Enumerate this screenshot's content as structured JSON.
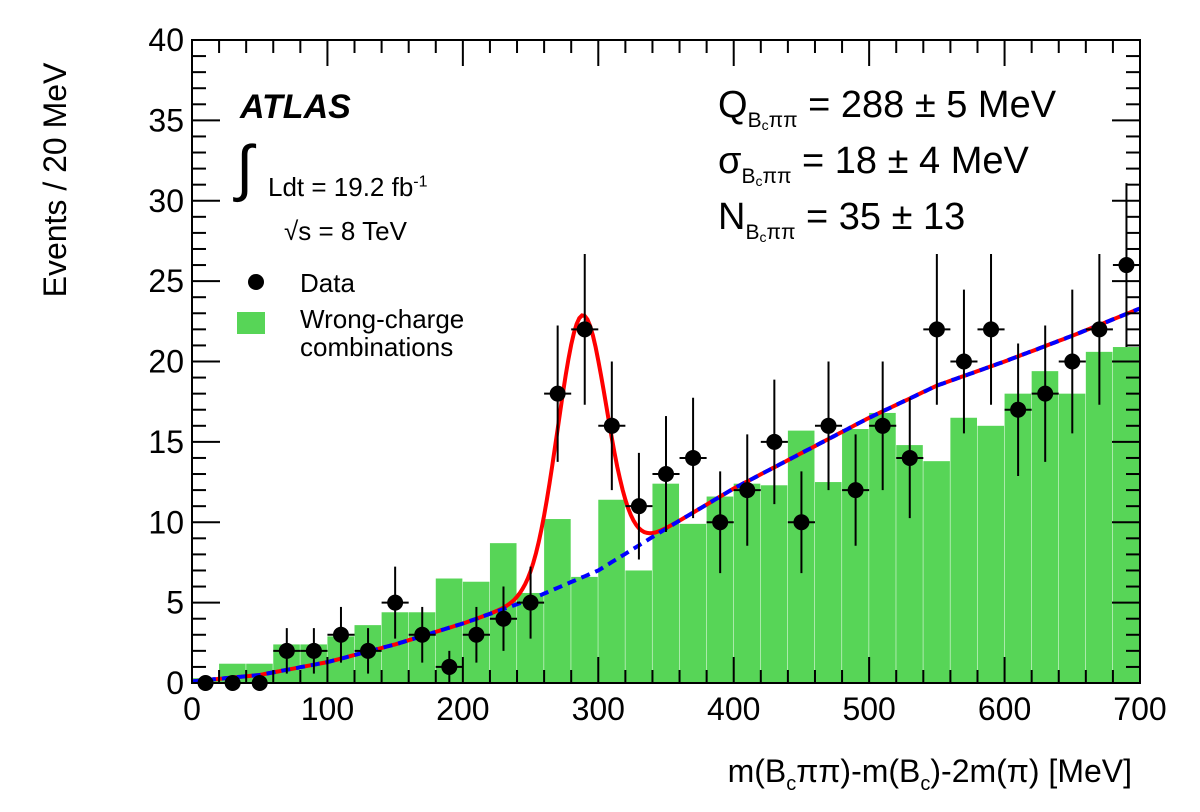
{
  "chart_data": {
    "type": "bar",
    "xlabel": "m(B_{c}ππ)-m(B_{c})-2m(π) [MeV]",
    "ylabel": "Events / 20 MeV",
    "xlim": [
      0,
      700
    ],
    "ylim": [
      0,
      40
    ],
    "x_ticks": [
      0,
      100,
      200,
      300,
      400,
      500,
      600,
      700
    ],
    "y_ticks": [
      0,
      5,
      10,
      15,
      20,
      25,
      30,
      35,
      40
    ],
    "bin_width": 20,
    "background_hist": {
      "name": "Wrong-charge combinations",
      "bin_centers": [
        10,
        30,
        50,
        70,
        90,
        110,
        130,
        150,
        170,
        190,
        210,
        230,
        250,
        270,
        290,
        310,
        330,
        350,
        370,
        390,
        410,
        430,
        450,
        470,
        490,
        510,
        530,
        550,
        570,
        590,
        610,
        630,
        650,
        670,
        690
      ],
      "values": [
        0.3,
        1.2,
        1.2,
        2.4,
        2.4,
        2.9,
        3.6,
        4.4,
        4.4,
        6.5,
        6.3,
        8.7,
        5.6,
        10.2,
        6.6,
        11.4,
        7.0,
        12.4,
        9.9,
        11.6,
        12.4,
        12.3,
        15.7,
        12.5,
        15.8,
        16.8,
        14.8,
        13.8,
        16.5,
        16.0,
        18.0,
        19.4,
        18.0,
        20.6,
        20.9
      ]
    },
    "data_points": {
      "name": "Data",
      "x": [
        10,
        30,
        50,
        70,
        90,
        110,
        130,
        150,
        170,
        190,
        210,
        230,
        250,
        270,
        290,
        310,
        330,
        350,
        370,
        390,
        410,
        430,
        450,
        470,
        490,
        510,
        530,
        550,
        570,
        590,
        610,
        630,
        650,
        670,
        690
      ],
      "y": [
        0,
        0,
        0,
        2,
        2,
        3,
        2,
        5,
        3,
        1,
        3,
        4,
        5,
        18,
        22,
        16,
        11,
        13,
        14,
        10,
        12,
        15,
        10,
        16,
        12,
        16,
        14,
        22,
        20,
        22,
        17,
        18,
        20,
        22,
        26
      ],
      "x_err": 10
    },
    "fit_background": {
      "style": "dashed blue",
      "x": [
        0,
        50,
        100,
        150,
        200,
        250,
        300,
        350,
        400,
        450,
        500,
        550,
        600,
        650,
        700
      ],
      "y": [
        0.1,
        0.5,
        1.3,
        2.4,
        3.7,
        5.2,
        7.0,
        9.6,
        12.1,
        14.3,
        16.5,
        18.5,
        20.0,
        21.6,
        23.3
      ]
    },
    "fit_total": {
      "style": "solid red",
      "peak_mean": 288,
      "peak_sigma": 18,
      "peak_height": 16.3
    },
    "legend": [
      "Data",
      "Wrong-charge combinations"
    ],
    "legend_position": "left, below labels"
  },
  "labels": {
    "experiment": "ATLAS",
    "lumi_integral": "∫",
    "lumi_text": "Ldt = 19.2 fb",
    "lumi_exp": "-1",
    "energy_text": "s = 8 TeV",
    "sqrt_sign": "√",
    "stat_q_sym": "Q",
    "stat_q_val": " = 288 ± 5 MeV",
    "stat_sigma_sym": "σ",
    "stat_sigma_val": " = 18 ± 4 MeV",
    "stat_n_sym": "N",
    "stat_n_val": " = 35 ± 13",
    "sub_B": "B",
    "sub_c": "c",
    "sub_pipi": "ππ",
    "legend_data": "Data",
    "legend_hist_line1": "Wrong-charge",
    "legend_hist_line2": "combinations",
    "xtitle_a": "m(B",
    "xtitle_b": "c",
    "xtitle_c": "ππ)-m(B",
    "xtitle_d": "c",
    "xtitle_e": ")-2m(π) [MeV]"
  },
  "colors": {
    "hist_fill": "#57d557",
    "fit_total": "#ff0000",
    "fit_background": "#0000ff",
    "data": "#000000"
  }
}
